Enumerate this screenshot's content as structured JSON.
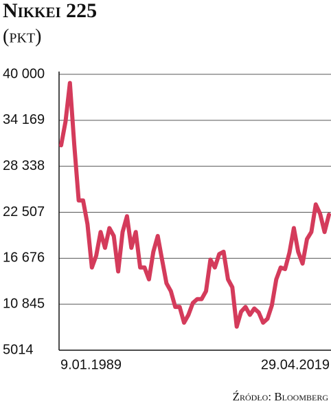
{
  "chart_data": {
    "type": "line",
    "title": "Nikkei 225",
    "subtitle": "(pkt)",
    "source": "Źródło: Bloomberg",
    "categories": [
      "9.01.1989",
      null,
      null,
      null,
      null,
      null,
      null,
      null,
      null,
      null,
      null,
      null,
      null,
      null,
      null,
      null,
      null,
      null,
      null,
      null,
      null,
      null,
      null,
      null,
      null,
      null,
      null,
      null,
      null,
      null,
      null,
      null,
      null,
      null,
      null,
      null,
      null,
      null,
      null,
      null,
      null,
      null,
      null,
      null,
      null,
      null,
      null,
      null,
      null,
      null,
      null,
      null,
      null,
      null,
      null,
      null,
      null,
      null,
      null,
      null,
      null,
      "29.04.2019"
    ],
    "values": [
      31000,
      34000,
      38900,
      31000,
      24000,
      24000,
      21000,
      15500,
      17000,
      20000,
      18000,
      20500,
      19500,
      15000,
      20000,
      22000,
      18000,
      20000,
      15500,
      15500,
      14000,
      17500,
      19500,
      16500,
      13500,
      12500,
      10500,
      10500,
      8500,
      9500,
      11000,
      11500,
      11500,
      12500,
      16500,
      15500,
      17200,
      17500,
      14000,
      13000,
      8000,
      9900,
      10500,
      9500,
      10300,
      9800,
      8500,
      9000,
      10700,
      14000,
      15500,
      15300,
      17400,
      20500,
      17500,
      16000,
      19100,
      20000,
      23500,
      22300,
      20000,
      22200
    ],
    "color": "#d43b5b",
    "ylim": [
      5014,
      40000
    ],
    "yticks": [
      {
        "value": 40000,
        "label": "40 000"
      },
      {
        "value": 34169,
        "label": "34 169"
      },
      {
        "value": 28338,
        "label": "28 338"
      },
      {
        "value": 22507,
        "label": "22 507"
      },
      {
        "value": 16676,
        "label": "16 676"
      },
      {
        "value": 10845,
        "label": "10 845"
      },
      5014
    ],
    "grid": true
  }
}
